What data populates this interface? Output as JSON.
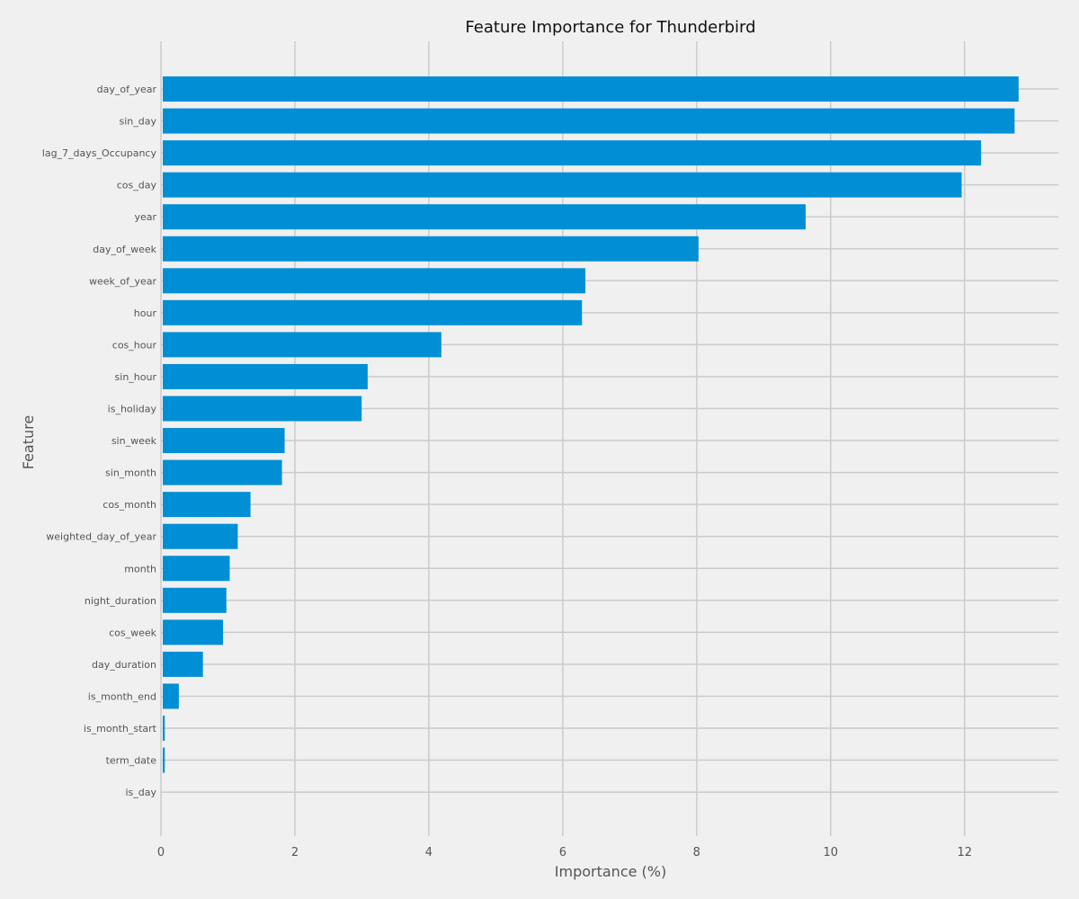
{
  "chart_data": {
    "type": "bar",
    "orientation": "horizontal",
    "title": "Feature Importance for Thunderbird",
    "xlabel": "Importance (%)",
    "ylabel": "Feature",
    "xlim": [
      0,
      13.4
    ],
    "x_ticks": [
      0,
      2,
      4,
      6,
      8,
      10,
      12
    ],
    "grid": true,
    "bar_color": "#008fd5",
    "background_color": "#f0f0f0",
    "grid_color": "#cbcbcb",
    "categories": [
      "day_of_year",
      "sin_day",
      "lag_7_days_Occupancy",
      "cos_day",
      "year",
      "day_of_week",
      "week_of_year",
      "hour",
      "cos_hour",
      "sin_hour",
      "is_holiday",
      "sin_week",
      "sin_month",
      "cos_month",
      "weighted_day_of_year",
      "month",
      "night_duration",
      "cos_week",
      "day_duration",
      "is_month_end",
      "is_month_start",
      "term_date",
      "is_day"
    ],
    "values": [
      12.78,
      12.72,
      12.22,
      11.93,
      9.6,
      8.0,
      6.31,
      6.26,
      4.16,
      3.06,
      2.97,
      1.82,
      1.78,
      1.31,
      1.12,
      1.0,
      0.95,
      0.9,
      0.6,
      0.24,
      0.03,
      0.03,
      0.0
    ]
  }
}
